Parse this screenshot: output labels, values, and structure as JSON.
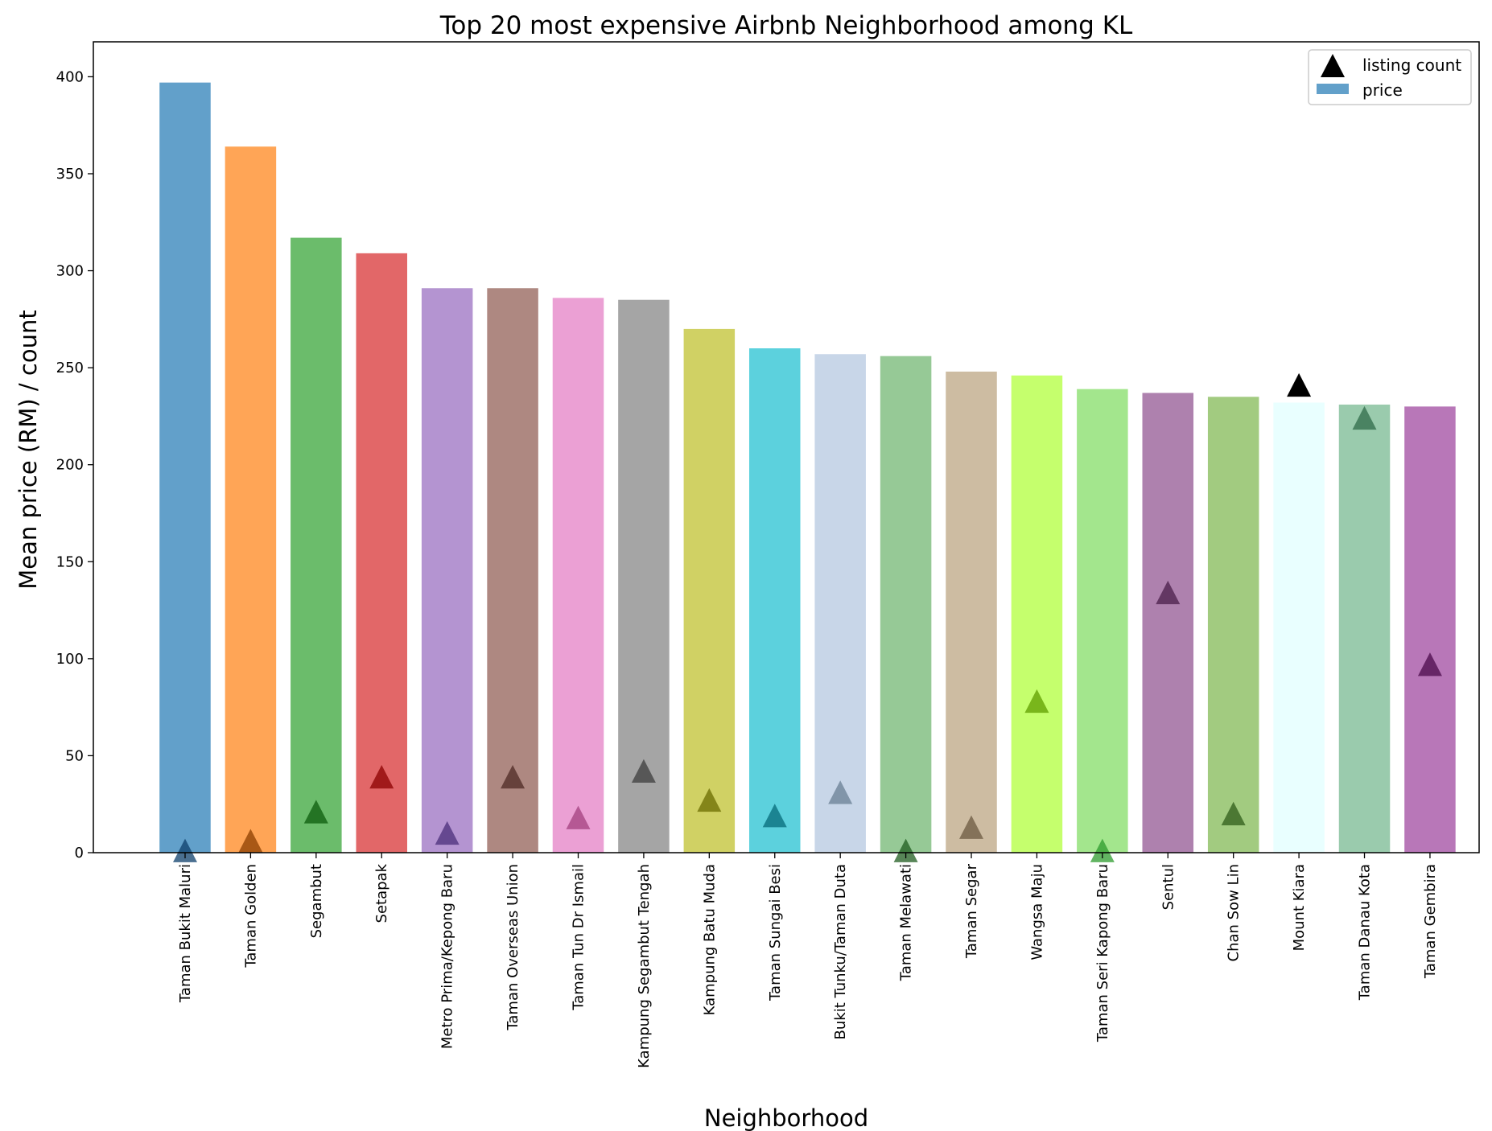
{
  "chart_data": {
    "type": "bar",
    "title": "Top 20 most expensive Airbnb Neighborhood among KL",
    "xlabel": "Neighborhood",
    "ylabel": "Mean price (RM) / count",
    "ylim": [
      0,
      418
    ],
    "yticks": [
      0,
      50,
      100,
      150,
      200,
      250,
      300,
      350,
      400
    ],
    "grid": false,
    "legend": {
      "position": "top-right",
      "entries": [
        {
          "label": "listing count",
          "marker": "triangle",
          "color": "#000000"
        },
        {
          "label": "price",
          "marker": "bar",
          "color": "#1f77b4"
        }
      ]
    },
    "categories": [
      "Taman Bukit Maluri",
      "Taman Golden",
      "Segambut",
      "Setapak",
      "Metro Prima/Kepong Baru",
      "Taman Overseas Union",
      "Taman Tun Dr Ismail",
      "Kampung Segambut Tengah",
      "Kampung Batu Muda",
      "Taman Sungai Besi",
      "Bukit Tunku/Taman Duta",
      "Taman Melawati",
      "Taman Segar",
      "Wangsa Maju",
      "Taman Seri Kapong Baru",
      "Sentul",
      "Chan Sow Lin",
      "Mount Kiara",
      "Taman Danau Kota",
      "Taman Gembira"
    ],
    "series": [
      {
        "name": "price",
        "type": "bar",
        "values": [
          397,
          364,
          317,
          309,
          291,
          291,
          286,
          285,
          270,
          260,
          257,
          256,
          248,
          246,
          239,
          237,
          235,
          232,
          231,
          230
        ]
      },
      {
        "name": "listing count",
        "type": "scatter",
        "marker": "triangle",
        "values": [
          1,
          6,
          21,
          39,
          10,
          39,
          18,
          42,
          27,
          19,
          31,
          1,
          13,
          78,
          1,
          134,
          20,
          241,
          224,
          97
        ]
      }
    ],
    "bar_colors": [
      "#1f77b4",
      "#ff7f0e",
      "#2ca02c",
      "#d62728",
      "#9467bd",
      "#8c564b",
      "#e377c2",
      "#7f7f7f",
      "#bcbd22",
      "#17becf",
      "#b0c4de",
      "#6ab26a",
      "#b8a07a",
      "#adff2f",
      "#7cdc5c",
      "#8b4c8c",
      "#7bb54a",
      "#e0ffff",
      "#6fb58a",
      "#9a3d9a"
    ],
    "marker_colors": [
      "#0d3f6b",
      "#8c3f00",
      "#0c5c0c",
      "#8b0000",
      "#4b2f7a",
      "#4d2a24",
      "#a3407f",
      "#3d3d3d",
      "#6b6b00",
      "#066a78",
      "#6a7f94",
      "#1f5c1f",
      "#6b5a40",
      "#5f9e00",
      "#2e9b2e",
      "#4a1f4a",
      "#2f5c1a",
      "#000000",
      "#2f6b4a",
      "#4b0a4b"
    ]
  }
}
